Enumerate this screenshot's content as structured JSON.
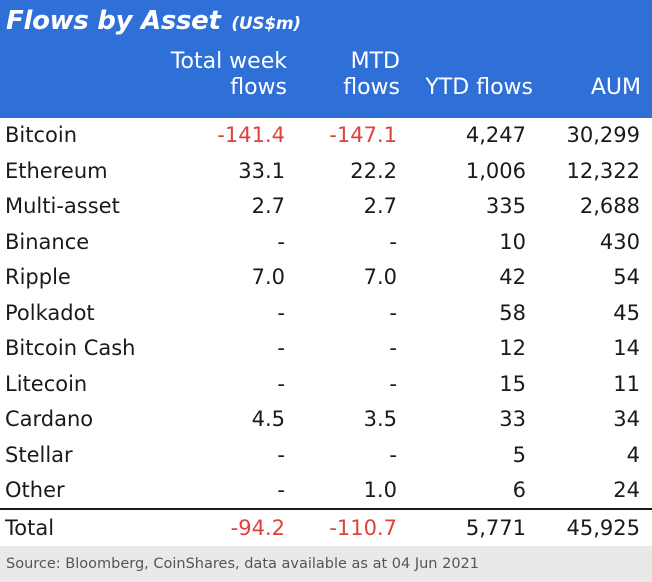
{
  "chart_data": {
    "type": "table",
    "title": "Flows by Asset",
    "title_unit": "(US$m)",
    "columns": [
      {
        "label": "",
        "line1": "",
        "line2": ""
      },
      {
        "label": "Total week flows",
        "line1": "Total week",
        "line2": "flows"
      },
      {
        "label": "MTD flows",
        "line1": "MTD",
        "line2": "flows"
      },
      {
        "label": "YTD flows",
        "line1": "",
        "line2": "YTD flows"
      },
      {
        "label": "AUM",
        "line1": "",
        "line2": "AUM"
      }
    ],
    "rows": [
      {
        "asset": "Bitcoin",
        "week": "-141.4",
        "mtd": "-147.1",
        "ytd": "4,247",
        "aum": "30,299"
      },
      {
        "asset": "Ethereum",
        "week": "33.1",
        "mtd": "22.2",
        "ytd": "1,006",
        "aum": "12,322"
      },
      {
        "asset": "Multi-asset",
        "week": "2.7",
        "mtd": "2.7",
        "ytd": "335",
        "aum": "2,688"
      },
      {
        "asset": "Binance",
        "week": "-",
        "mtd": "-",
        "ytd": "10",
        "aum": "430"
      },
      {
        "asset": "Ripple",
        "week": "7.0",
        "mtd": "7.0",
        "ytd": "42",
        "aum": "54"
      },
      {
        "asset": "Polkadot",
        "week": "-",
        "mtd": "-",
        "ytd": "58",
        "aum": "45"
      },
      {
        "asset": "Bitcoin Cash",
        "week": "-",
        "mtd": "-",
        "ytd": "12",
        "aum": "14"
      },
      {
        "asset": "Litecoin",
        "week": "-",
        "mtd": "-",
        "ytd": "15",
        "aum": "11"
      },
      {
        "asset": "Cardano",
        "week": "4.5",
        "mtd": "3.5",
        "ytd": "33",
        "aum": "34"
      },
      {
        "asset": "Stellar",
        "week": "-",
        "mtd": "-",
        "ytd": "5",
        "aum": "4"
      },
      {
        "asset": "Other",
        "week": "-",
        "mtd": "1.0",
        "ytd": "6",
        "aum": "24"
      }
    ],
    "total": {
      "asset": "Total",
      "week": "-94.2",
      "mtd": "-110.7",
      "ytd": "5,771",
      "aum": "45,925"
    }
  },
  "source": "Source: Bloomberg, CoinShares, data available as at 04 Jun 2021",
  "colors": {
    "header_bg": "#2f6fd8",
    "header_text": "#ffffff",
    "negative": "#e0413b",
    "text": "#1a1a1a",
    "source_bg": "#e9e9e9",
    "source_text": "#555555"
  }
}
